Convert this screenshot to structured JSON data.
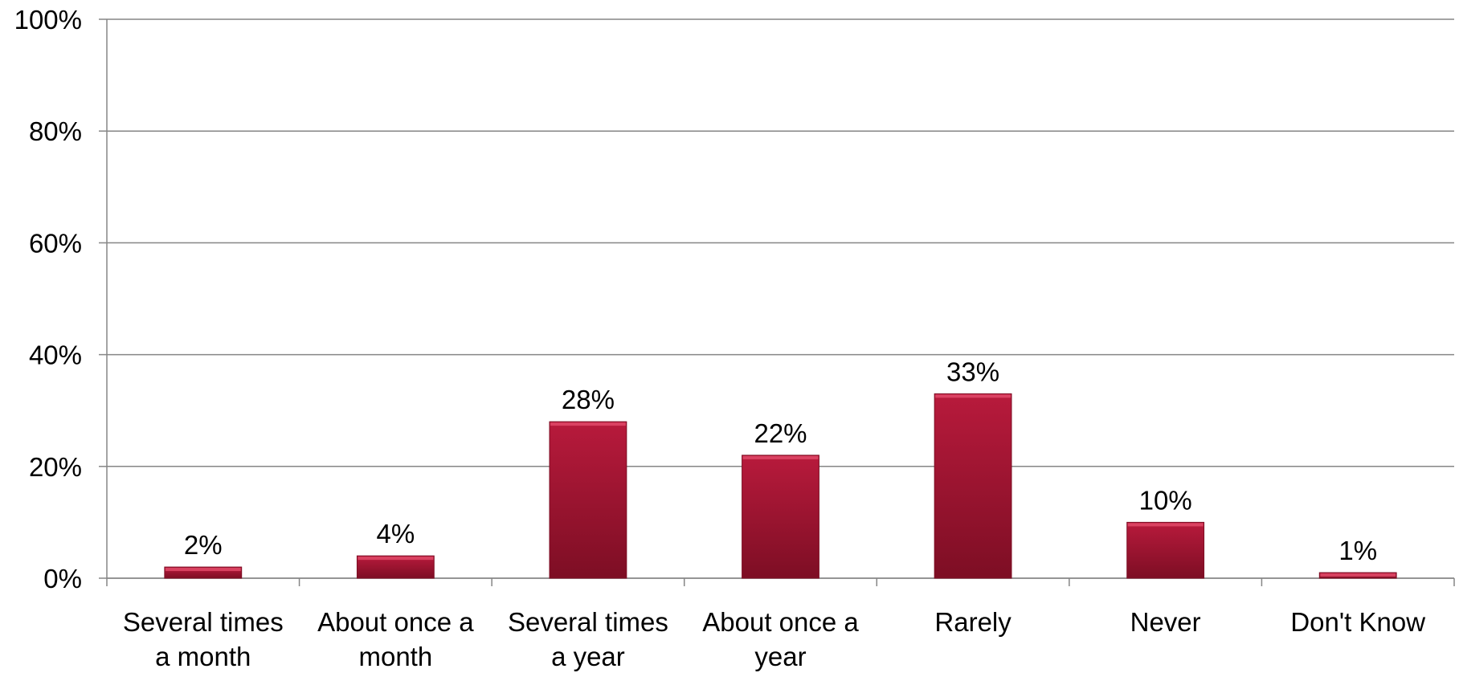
{
  "chart_data": {
    "type": "bar",
    "title": "",
    "xlabel": "",
    "ylabel": "",
    "categories": [
      [
        "Several times",
        "a month"
      ],
      [
        "About once a",
        "month"
      ],
      [
        "Several times",
        "a year"
      ],
      [
        "About once a",
        "year"
      ],
      [
        "Rarely"
      ],
      [
        "Never"
      ],
      [
        "Don't Know"
      ]
    ],
    "values": [
      2,
      4,
      28,
      22,
      33,
      10,
      1
    ],
    "data_labels": [
      "2%",
      "4%",
      "28%",
      "22%",
      "33%",
      "10%",
      "1%"
    ],
    "ylim": [
      0,
      100
    ],
    "y_ticks": [
      0,
      20,
      40,
      60,
      80,
      100
    ],
    "y_tick_labels": [
      "0%",
      "20%",
      "40%",
      "60%",
      "80%",
      "100%"
    ],
    "grid": true,
    "legend": "none",
    "colors": {
      "bar_top": "#b81a3c",
      "bar_bottom": "#7d0e24",
      "bar_edge": "#e04a68",
      "grid": "#868686",
      "axis": "#868686"
    }
  }
}
